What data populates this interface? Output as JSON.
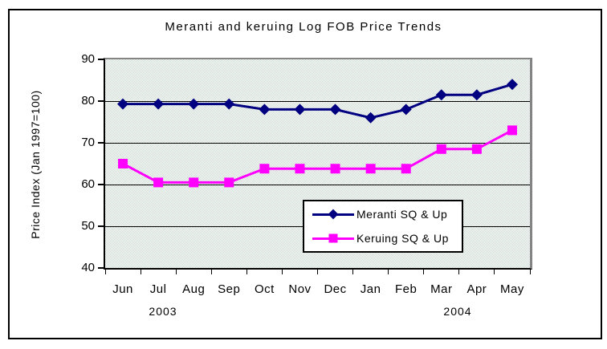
{
  "chart_data": {
    "type": "line",
    "title": "Meranti and keruing Log FOB Price Trends",
    "ylabel": "Price Index (Jan 1997=100)",
    "xlabel": "",
    "categories": [
      "Jun",
      "Jul",
      "Aug",
      "Sep",
      "Oct",
      "Nov",
      "Dec",
      "Jan",
      "Feb",
      "Mar",
      "Apr",
      "May"
    ],
    "year_labels": [
      {
        "text": "2003"
      },
      {
        "text": "2004"
      }
    ],
    "ylim": [
      40,
      90
    ],
    "yticks": [
      40,
      50,
      60,
      70,
      80,
      90
    ],
    "grid": true,
    "legend_position": "inside-bottom-right",
    "plot_bg_color": "#E8EEEA",
    "plot_dither_color": "#CDD9D3",
    "grid_color": "#000000",
    "series": [
      {
        "name": "Meranti SQ & Up",
        "marker": "diamond",
        "color": "#000080",
        "values": [
          79.3,
          79.3,
          79.3,
          79.3,
          78,
          78,
          78,
          76,
          78,
          81.5,
          81.5,
          84
        ]
      },
      {
        "name": "Keruing SQ & Up",
        "marker": "square",
        "color": "#FF00FF",
        "values": [
          65,
          60.5,
          60.5,
          60.5,
          63.8,
          63.8,
          63.8,
          63.8,
          63.8,
          68.5,
          68.5,
          73
        ]
      }
    ]
  }
}
